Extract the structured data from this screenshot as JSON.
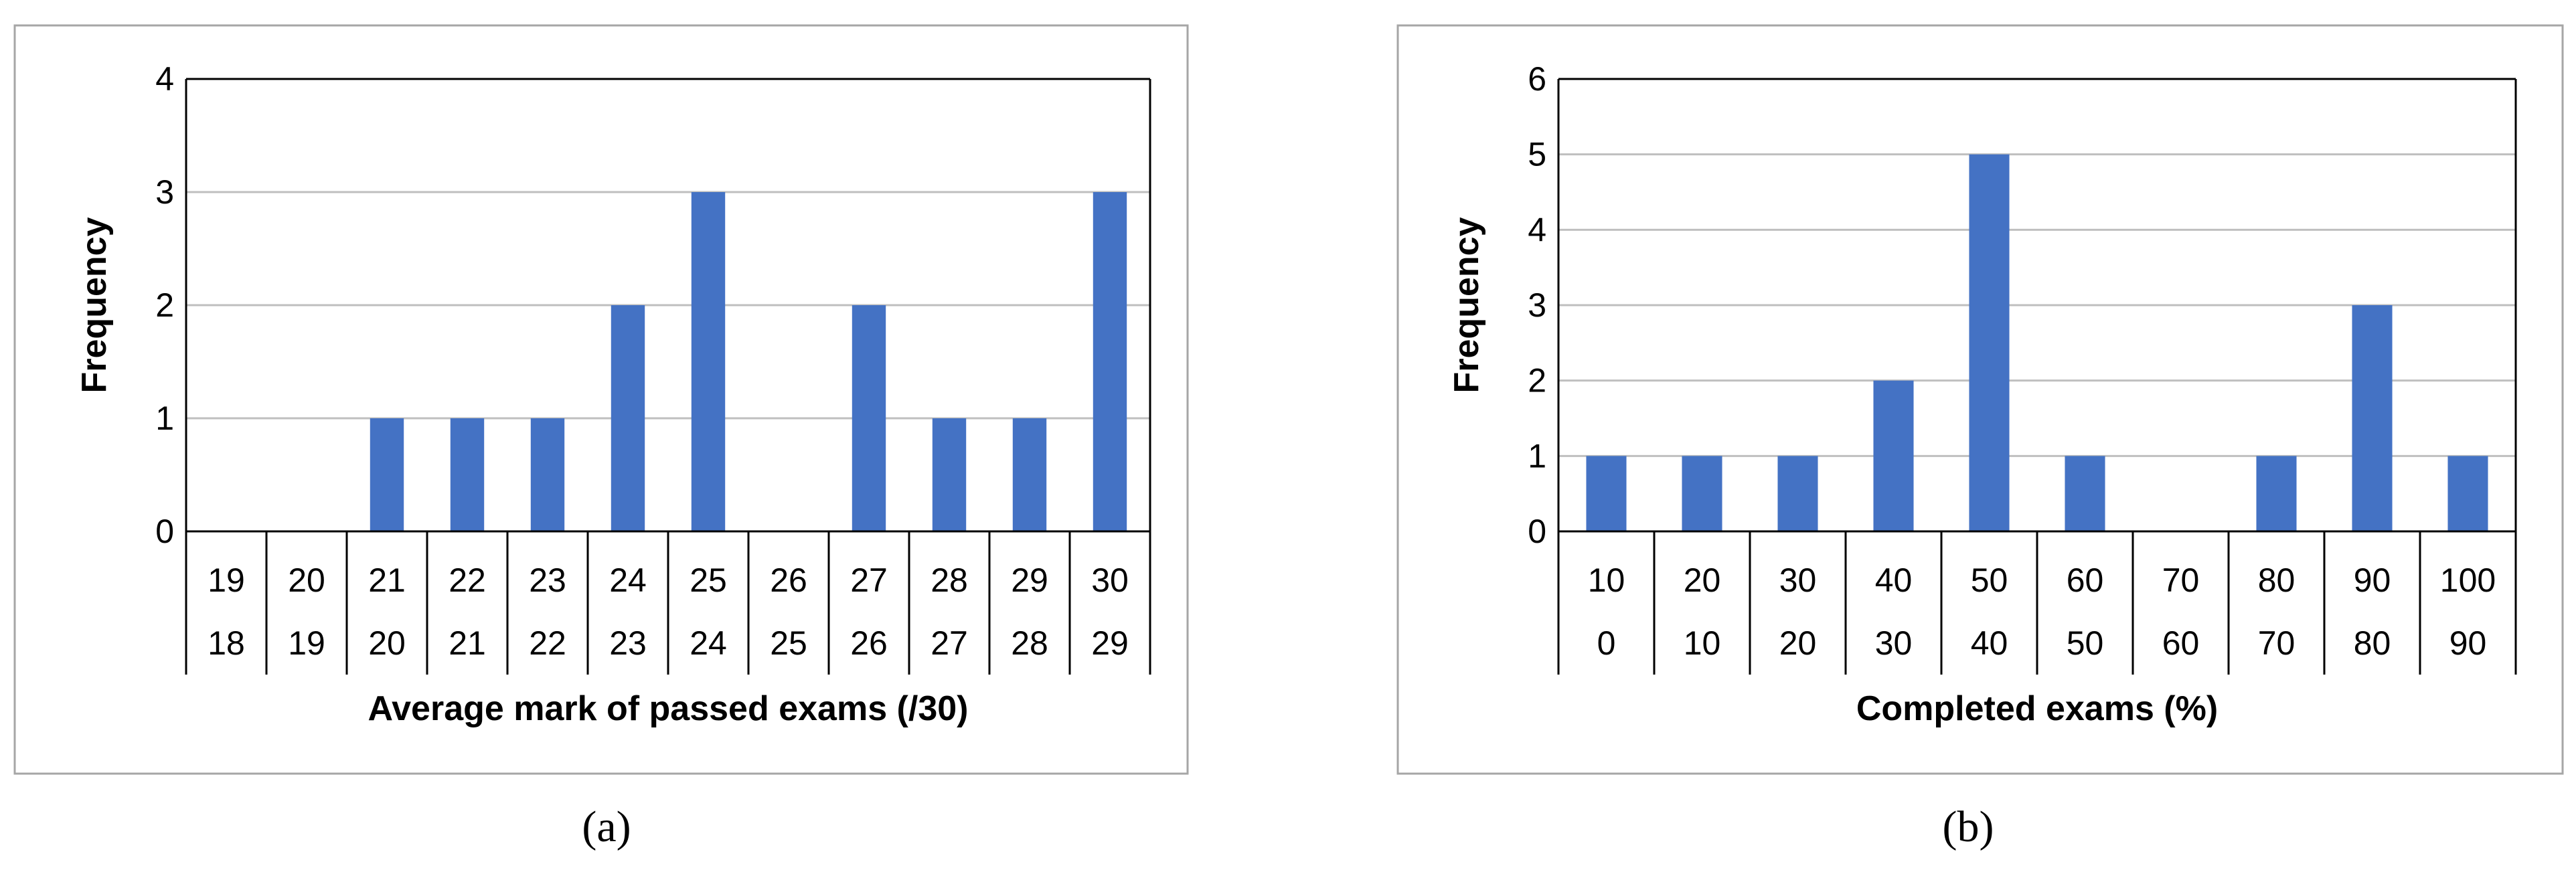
{
  "chart_data": [
    {
      "type": "bar",
      "caption": "(a)",
      "xlabel": "Average mark of passed exams (/30)",
      "ylabel": "Frequency",
      "ylim": [
        0,
        4
      ],
      "yticks": [
        "0",
        "1",
        "2",
        "3",
        "4"
      ],
      "grid": true,
      "category_upper": [
        "19",
        "20",
        "21",
        "22",
        "23",
        "24",
        "25",
        "26",
        "27",
        "28",
        "29",
        "30"
      ],
      "category_lower": [
        "18",
        "19",
        "20",
        "21",
        "22",
        "23",
        "24",
        "25",
        "26",
        "27",
        "28",
        "29"
      ],
      "values": [
        0,
        0,
        1,
        1,
        1,
        2,
        3,
        0,
        2,
        1,
        1,
        3
      ],
      "bar_color": "#4472C4"
    },
    {
      "type": "bar",
      "caption": "(b)",
      "xlabel": "Completed exams (%)",
      "ylabel": "Frequency",
      "ylim": [
        0,
        6
      ],
      "yticks": [
        "0",
        "1",
        "2",
        "3",
        "4",
        "5",
        "6"
      ],
      "grid": true,
      "category_upper": [
        "10",
        "20",
        "30",
        "40",
        "50",
        "60",
        "70",
        "80",
        "90",
        "100"
      ],
      "category_lower": [
        "0",
        "10",
        "20",
        "30",
        "40",
        "50",
        "60",
        "70",
        "80",
        "90"
      ],
      "values": [
        1,
        1,
        1,
        2,
        5,
        1,
        0,
        1,
        3,
        1
      ],
      "bar_color": "#4472C4"
    }
  ]
}
